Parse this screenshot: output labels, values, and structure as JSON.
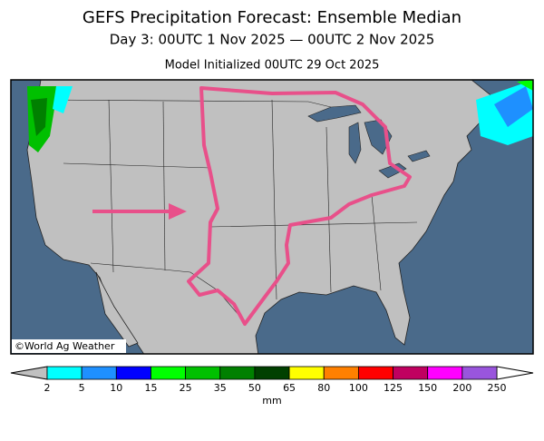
{
  "header": {
    "title": "GEFS Precipitation Forecast: Ensemble Median",
    "subtitle": "Day 3: 00UTC 1 Nov 2025 — 00UTC 2 Nov 2025",
    "initialized": "Model Initialized 00UTC 29 Oct 2025"
  },
  "map": {
    "credit": "©World Ag Weather"
  },
  "legend": {
    "ticks": [
      2,
      5,
      10,
      15,
      25,
      35,
      50,
      65,
      80,
      100,
      125,
      150,
      200,
      250
    ],
    "colors": [
      "#00ffff",
      "#1e90ff",
      "#0000ff",
      "#00ff00",
      "#00c000",
      "#008000",
      "#004000",
      "#ffff00",
      "#ff8000",
      "#ff0000",
      "#c00060",
      "#ff00ff",
      "#9955dd"
    ],
    "below_color": "#c0c0c0",
    "above_color": "#ffffff",
    "unit": "mm"
  }
}
